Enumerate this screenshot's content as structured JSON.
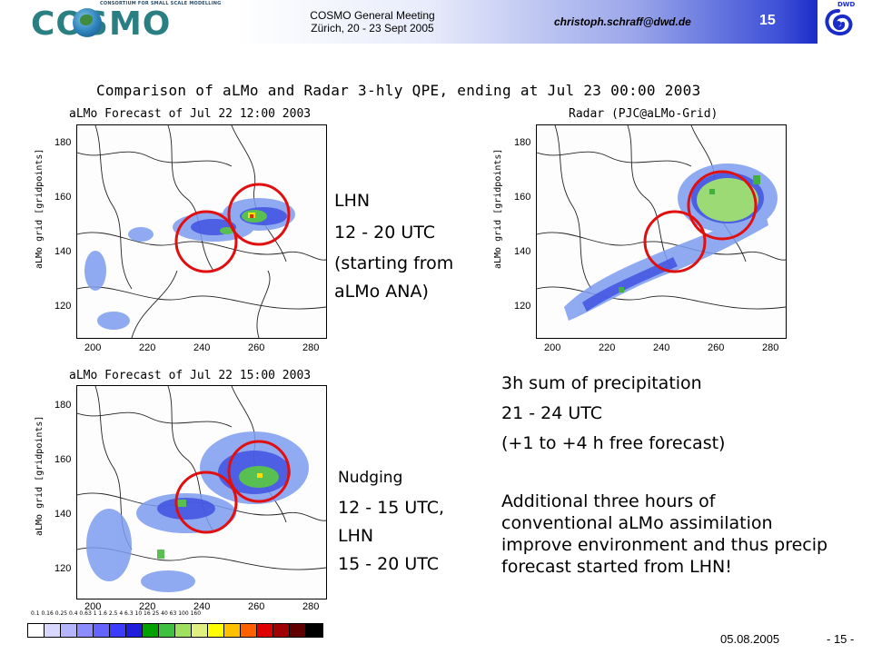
{
  "header": {
    "logo_word": "COSMO",
    "logo_tagline": "CONSORTIUM FOR SMALL SCALE MODELLING",
    "meeting_line1": "COSMO General Meeting",
    "meeting_line2": "Zürich, 20 - 23 Sept 2005",
    "email": "christoph.schraff@dwd.de",
    "slide_number": "15",
    "dwd_label": "DWD"
  },
  "main_title": "Comparison of aLMo and Radar  3-hly QPE, ending at Jul 23 00:00 2003",
  "panels": {
    "top_left_title": "aLMo Forecast of Jul 22 12:00 2003",
    "top_right_title": "Radar (PJC@aLMo-Grid)",
    "bottom_left_title": "aLMo Forecast of Jul 22 15:00 2003",
    "y_axis_label": "aLMo grid [gridpoints]",
    "x_ticks": [
      "200",
      "220",
      "240",
      "260",
      "280"
    ],
    "y_ticks": [
      "180",
      "160",
      "140",
      "120"
    ]
  },
  "lhn_block": {
    "line1": "LHN",
    "line2": "12 - 20 UTC",
    "line3": "(starting from",
    "line4": "aLMo ANA)"
  },
  "nudging_block": {
    "line1": "Nudging",
    "line2": "12 - 15 UTC,",
    "line3": "LHN",
    "line4": "15 - 20 UTC"
  },
  "sum_block": {
    "line1": "3h sum of precipitation",
    "line2": "21 - 24 UTC",
    "line3": "(+1 to +4 h free forecast)"
  },
  "paragraph": "Additional three hours of conventional aLMo assimilation improve environment and thus precip forecast started from LHN!",
  "color_scale": {
    "labels": "0.1  0.16  0.25  0.4  0.63   1    1.6   2.5   4    6.3   10   16   25   40   63   100  160",
    "colors": [
      "#ffffff",
      "#d8d8ff",
      "#b4b4ff",
      "#8c8cff",
      "#6464ff",
      "#3c3cff",
      "#1e1edc",
      "#00a000",
      "#40c040",
      "#a0e060",
      "#e0f080",
      "#ffff00",
      "#ffc000",
      "#ff6000",
      "#e00000",
      "#a00000",
      "#600000",
      "#000000"
    ]
  },
  "footer": {
    "date": "05.08.2005",
    "page": "- 15 -"
  }
}
